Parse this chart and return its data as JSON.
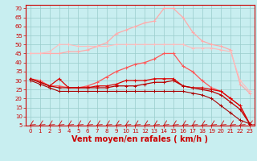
{
  "x": [
    0,
    1,
    2,
    3,
    4,
    5,
    6,
    7,
    8,
    9,
    10,
    11,
    12,
    13,
    14,
    15,
    16,
    17,
    18,
    19,
    20,
    21,
    22,
    23
  ],
  "series": [
    {
      "color": "#ffaaaa",
      "marker": "P",
      "lw": 0.9,
      "values": [
        45,
        45,
        45,
        45,
        46,
        46,
        47,
        49,
        51,
        56,
        58,
        60,
        62,
        63,
        70,
        70,
        65,
        57,
        52,
        50,
        49,
        47,
        28,
        23
      ]
    },
    {
      "color": "#ffbbbb",
      "marker": "P",
      "lw": 0.8,
      "values": [
        45,
        45,
        46,
        50,
        50,
        49,
        49,
        49,
        49,
        50,
        50,
        50,
        50,
        50,
        50,
        50,
        50,
        48,
        48,
        48,
        47,
        46,
        30,
        24
      ]
    },
    {
      "color": "#ff5555",
      "marker": "P",
      "lw": 0.9,
      "values": [
        31,
        30,
        27,
        27,
        26,
        26,
        27,
        29,
        32,
        35,
        37,
        39,
        40,
        42,
        45,
        45,
        38,
        35,
        30,
        26,
        24,
        20,
        16,
        6
      ]
    },
    {
      "color": "#dd0000",
      "marker": "P",
      "lw": 0.9,
      "values": [
        31,
        29,
        27,
        31,
        26,
        26,
        26,
        27,
        27,
        28,
        30,
        30,
        30,
        31,
        31,
        31,
        27,
        26,
        26,
        25,
        24,
        20,
        16,
        6
      ]
    },
    {
      "color": "#bb0000",
      "marker": "P",
      "lw": 0.9,
      "values": [
        31,
        29,
        27,
        26,
        26,
        26,
        26,
        26,
        26,
        27,
        27,
        27,
        28,
        29,
        29,
        30,
        27,
        26,
        25,
        24,
        22,
        18,
        14,
        6
      ]
    },
    {
      "color": "#aa0000",
      "marker": "P",
      "lw": 0.8,
      "values": [
        30,
        28,
        26,
        24,
        24,
        24,
        24,
        24,
        24,
        24,
        24,
        24,
        24,
        24,
        24,
        24,
        24,
        23,
        22,
        20,
        16,
        12,
        8,
        6
      ]
    }
  ],
  "bg_color": "#c8eef0",
  "grid_color": "#99cccc",
  "xlabel": "Vent moyen/en rafales ( km/h )",
  "xlabel_color": "#cc0000",
  "xlabel_fontsize": 7,
  "ytick_labels": [
    "5",
    "10",
    "15",
    "20",
    "25",
    "30",
    "35",
    "40",
    "45",
    "50",
    "55",
    "60",
    "65",
    "70"
  ],
  "ytick_vals": [
    5,
    10,
    15,
    20,
    25,
    30,
    35,
    40,
    45,
    50,
    55,
    60,
    65,
    70
  ],
  "xtick_vals": [
    0,
    1,
    2,
    3,
    4,
    5,
    6,
    7,
    8,
    9,
    10,
    11,
    12,
    13,
    14,
    15,
    16,
    17,
    18,
    19,
    20,
    21,
    22,
    23
  ],
  "ylim": [
    5,
    72
  ],
  "xlim": [
    -0.5,
    23.5
  ],
  "tick_fontsize": 5,
  "spine_color": "#cc0000",
  "tick_color": "#cc0000",
  "arrow_color": "#cc0000"
}
